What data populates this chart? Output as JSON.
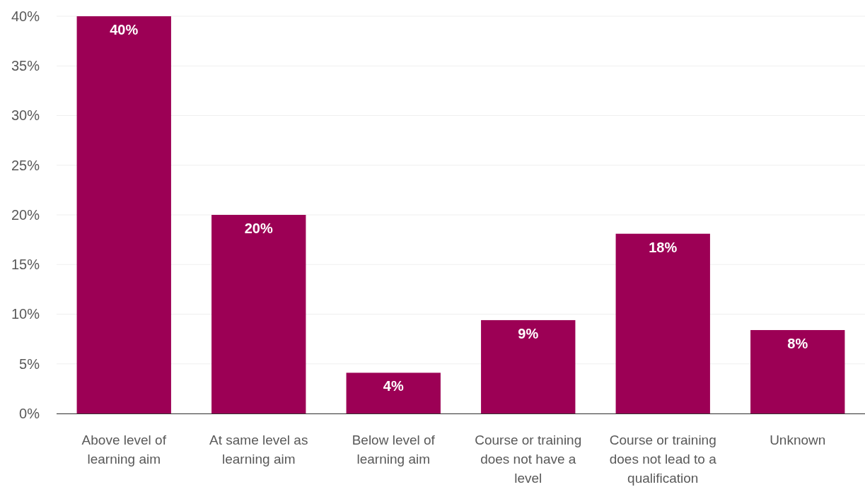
{
  "chart_data": {
    "type": "bar",
    "categories": [
      "Above level of learning aim",
      "At same level as learning aim",
      "Below level of learning aim",
      "Course or training does not have a level",
      "Course or training does not lead to a qualification",
      "Unknown"
    ],
    "values": [
      40,
      20,
      4.1,
      9.4,
      18.1,
      8.4
    ],
    "value_labels": [
      "40%",
      "20%",
      "4%",
      "9%",
      "18%",
      "8%"
    ],
    "color": "#9c0055",
    "ylim": [
      0,
      40
    ],
    "yticks": [
      {
        "value": 0,
        "label": "0%"
      },
      {
        "value": 5,
        "label": "5%"
      },
      {
        "value": 10,
        "label": "10%"
      },
      {
        "value": 15,
        "label": "15%"
      },
      {
        "value": 20,
        "label": "20%"
      },
      {
        "value": 25,
        "label": "25%"
      },
      {
        "value": 30,
        "label": "30%"
      },
      {
        "value": 35,
        "label": "35%"
      },
      {
        "value": 40,
        "label": "40%"
      }
    ],
    "grid": "y"
  }
}
